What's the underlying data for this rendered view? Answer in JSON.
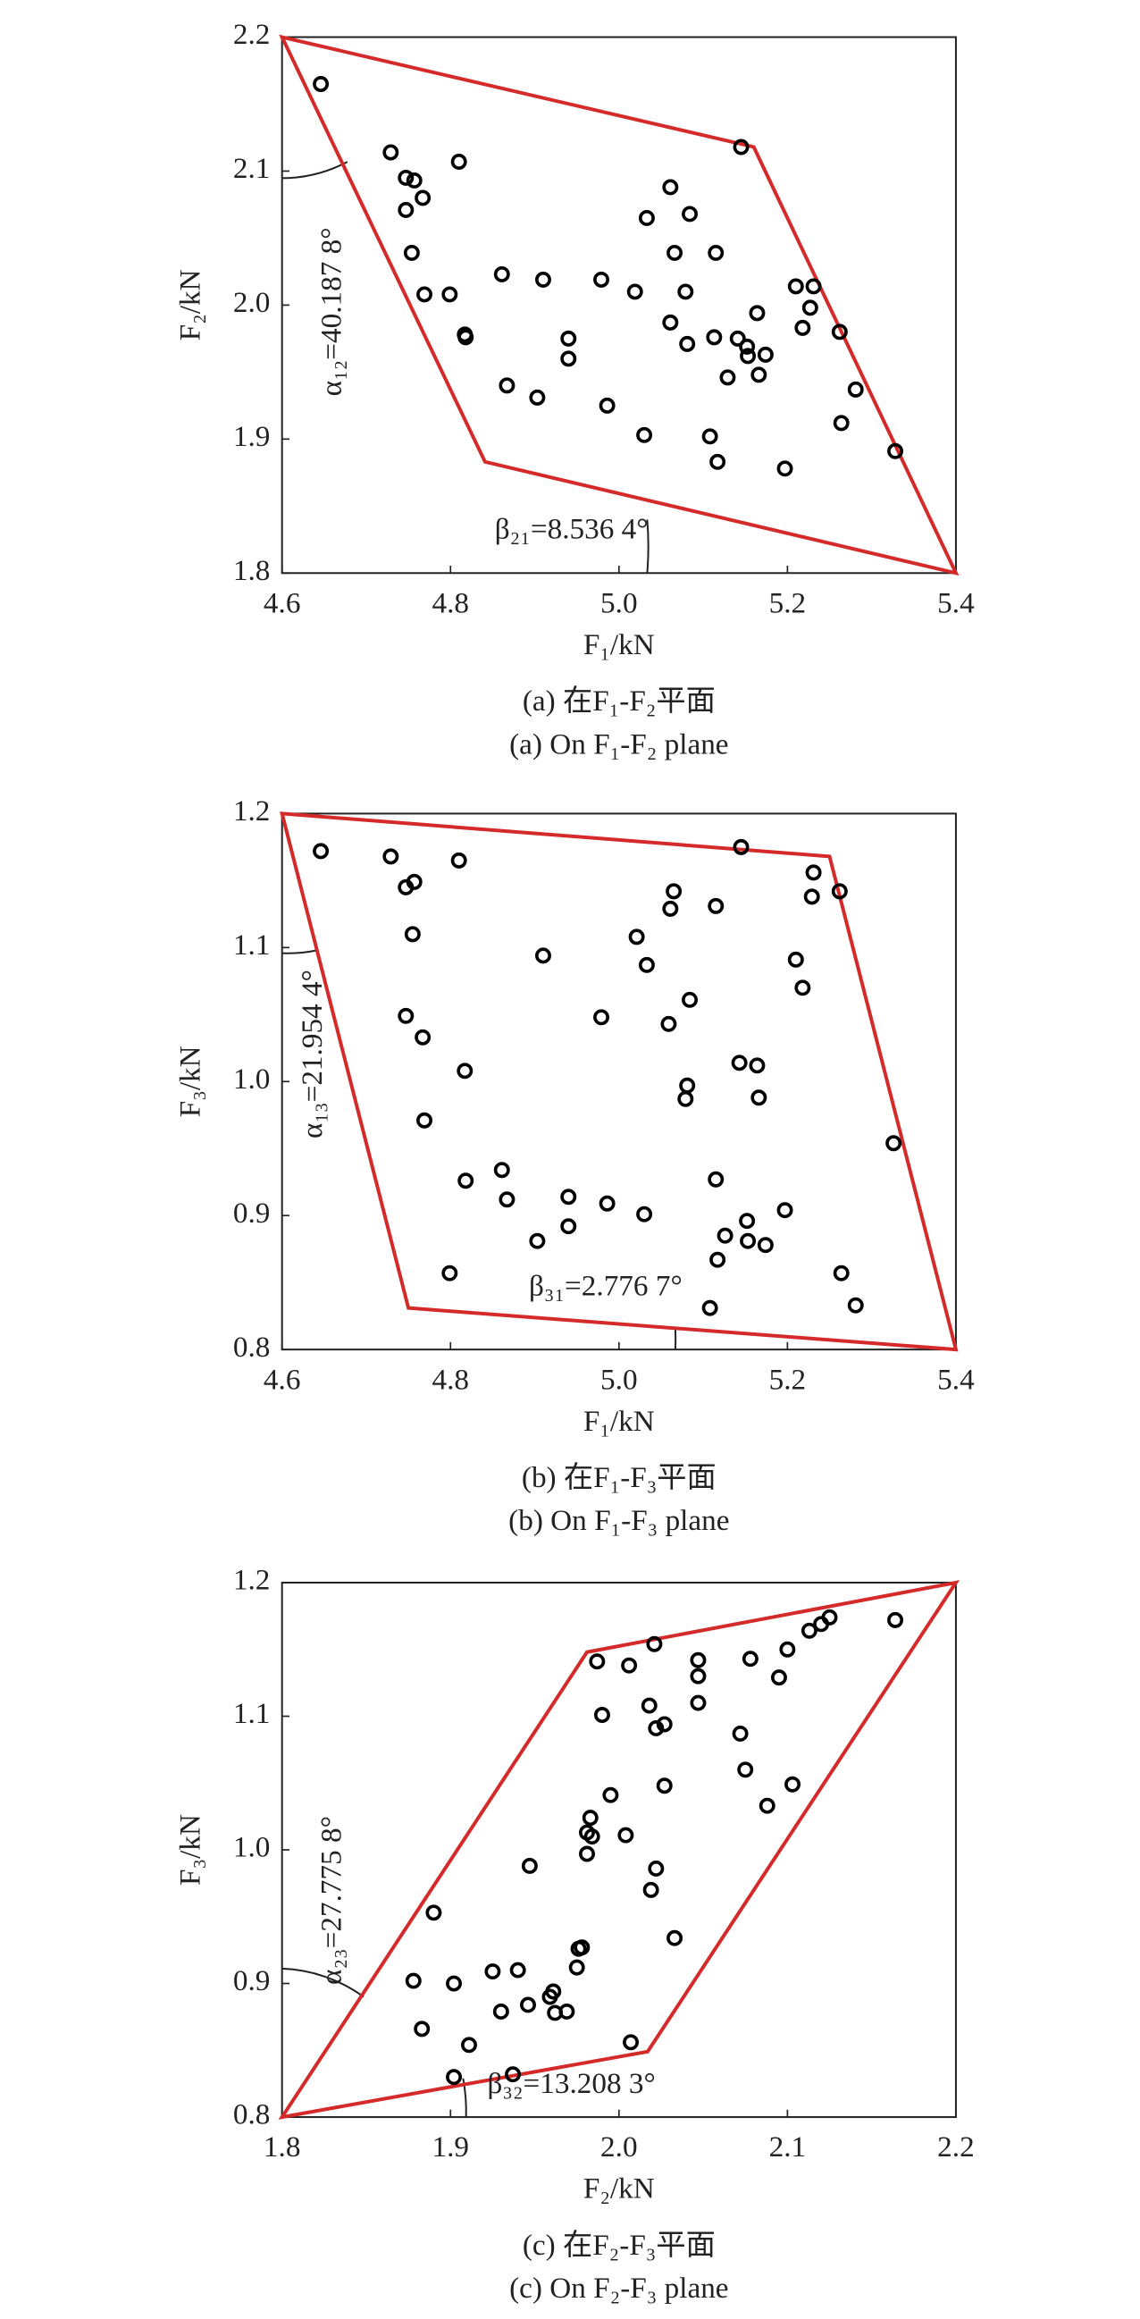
{
  "chart_data": [
    {
      "type": "scatter",
      "xlabel": "F₁/kN",
      "ylabel": "F₂/kN",
      "caption_zh": "(a) 在F₁-F₂平面",
      "caption_en": "(a) On F₁-F₂ plane",
      "annotations": [
        "α₁₂=40.187 8°",
        "β₂₁=8.536 4°"
      ],
      "xlim": [
        4.6,
        5.4
      ],
      "ylim": [
        1.8,
        2.2
      ],
      "xticks": [
        4.6,
        4.8,
        {
          "value": 5,
          "label": "5.0"
        },
        5.2,
        5.4
      ],
      "yticks": [
        1.8,
        1.9,
        {
          "value": 2,
          "label": "2.0"
        },
        2.1,
        2.2
      ],
      "color": "#000000",
      "x": [
        4.646,
        4.729,
        4.747,
        4.757,
        4.767,
        4.747,
        4.81,
        4.754,
        4.769,
        4.799,
        4.817,
        4.818,
        4.861,
        4.91,
        4.867,
        4.903,
        4.94,
        4.94,
        4.979,
        4.986,
        5.019,
        5.033,
        5.03,
        5.061,
        5.066,
        5.061,
        5.084,
        5.079,
        5.081,
        5.115,
        5.113,
        5.129,
        5.108,
        5.117,
        5.145,
        5.141,
        5.152,
        5.153,
        5.164,
        5.166,
        5.174,
        5.197,
        5.21,
        5.231,
        5.227,
        5.218,
        5.262,
        5.281,
        5.264,
        5.328
      ],
      "y": [
        2.165,
        2.114,
        2.095,
        2.093,
        2.08,
        2.071,
        2.107,
        2.039,
        2.008,
        2.008,
        1.978,
        1.976,
        2.023,
        2.019,
        1.94,
        1.931,
        1.975,
        1.96,
        2.019,
        1.925,
        2.01,
        2.065,
        1.903,
        2.088,
        2.039,
        1.987,
        2.068,
        2.01,
        1.971,
        2.039,
        1.976,
        1.946,
        1.902,
        1.883,
        2.118,
        1.975,
        1.969,
        1.962,
        1.994,
        1.948,
        1.963,
        1.878,
        2.014,
        2.014,
        1.998,
        1.983,
        1.98,
        1.937,
        1.912,
        1.891
      ],
      "polygon": {
        "color": "#d42a2a",
        "x": [
          4.6,
          5.16,
          5.4,
          4.841
        ],
        "y": [
          2.2,
          2.118,
          1.8,
          1.883
        ]
      }
    },
    {
      "type": "scatter",
      "xlabel": "F₁/kN",
      "ylabel": "F₃/kN",
      "caption_zh": "(b) 在F₁-F₃平面",
      "caption_en": "(b) On F₁-F₃ plane",
      "annotations": [
        "α₁₃=21.954 4°",
        "β₃₁=2.776 7°"
      ],
      "xlim": [
        4.6,
        5.4
      ],
      "ylim": [
        0.8,
        1.2
      ],
      "xticks": [
        4.6,
        4.8,
        {
          "value": 5,
          "label": "5.0"
        },
        5.2,
        5.4
      ],
      "yticks": [
        0.8,
        0.9,
        {
          "value": 1,
          "label": "1.0"
        },
        1.1,
        1.2
      ],
      "color": "#000000",
      "x": [
        4.646,
        4.729,
        4.747,
        4.757,
        4.81,
        4.755,
        4.747,
        4.767,
        4.817,
        4.769,
        4.91,
        4.979,
        5.021,
        5.033,
        5.065,
        5.061,
        5.115,
        5.145,
        5.059,
        5.084,
        5.081,
        5.079,
        5.143,
        5.164,
        5.166,
        5.21,
        5.218,
        5.231,
        5.229,
        5.262,
        5.326,
        4.861,
        4.867,
        4.818,
        4.94,
        4.94,
        4.903,
        4.986,
        5.03,
        5.115,
        5.126,
        5.117,
        5.152,
        5.153,
        5.174,
        5.197,
        4.799,
        5.108,
        5.264,
        5.281
      ],
      "y": [
        1.172,
        1.168,
        1.145,
        1.149,
        1.165,
        1.11,
        1.049,
        1.033,
        1.008,
        0.971,
        1.094,
        1.048,
        1.108,
        1.087,
        1.142,
        1.129,
        1.131,
        1.175,
        1.043,
        1.061,
        0.997,
        0.987,
        1.014,
        1.012,
        0.988,
        1.091,
        1.07,
        1.156,
        1.138,
        1.142,
        0.954,
        0.934,
        0.912,
        0.926,
        0.914,
        0.892,
        0.881,
        0.909,
        0.901,
        0.927,
        0.885,
        0.867,
        0.896,
        0.881,
        0.878,
        0.904,
        0.857,
        0.831,
        0.857,
        0.833
      ],
      "polygon": {
        "color": "#d42a2a",
        "x": [
          4.6,
          5.25,
          5.4,
          4.75
        ],
        "y": [
          1.2,
          1.168,
          0.8,
          0.831
        ]
      }
    },
    {
      "type": "scatter",
      "xlabel": "F₂/kN",
      "ylabel": "F₃/kN",
      "caption_zh": "(c) 在F₂-F₃平面",
      "caption_en": "(c) On F₂-F₃ plane",
      "annotations": [
        "α₂₃=27.775 8°",
        "β₃₂=13.208 3°"
      ],
      "xlim": [
        1.8,
        2.2
      ],
      "ylim": [
        0.8,
        1.2
      ],
      "xticks": [
        1.8,
        1.9,
        {
          "value": 2,
          "label": "2.0"
        },
        2.1,
        2.2
      ],
      "yticks": [
        0.8,
        0.9,
        {
          "value": 1,
          "label": "1.0"
        },
        1.1,
        1.2
      ],
      "color": "#000000",
      "x": [
        2.164,
        2.125,
        2.12,
        2.113,
        2.1,
        2.095,
        2.078,
        2.021,
        2.006,
        1.987,
        2.047,
        2.047,
        2.047,
        2.018,
        2.022,
        2.027,
        1.99,
        2.072,
        2.075,
        2.103,
        2.088,
        2.027,
        1.995,
        1.983,
        1.984,
        1.981,
        1.981,
        2.004,
        1.947,
        2.022,
        2.019,
        2.033,
        1.89,
        1.878,
        1.902,
        1.883,
        1.925,
        1.94,
        1.976,
        1.978,
        1.975,
        1.961,
        1.959,
        1.962,
        1.969,
        1.946,
        1.93,
        1.911,
        1.902,
        1.937,
        2.007
      ],
      "y": [
        1.172,
        1.174,
        1.169,
        1.164,
        1.15,
        1.129,
        1.143,
        1.154,
        1.138,
        1.141,
        1.142,
        1.13,
        1.11,
        1.108,
        1.091,
        1.094,
        1.101,
        1.087,
        1.06,
        1.049,
        1.033,
        1.048,
        1.041,
        1.024,
        1.01,
        1.013,
        0.997,
        1.011,
        0.988,
        0.986,
        0.97,
        0.934,
        0.953,
        0.902,
        0.9,
        0.866,
        0.909,
        0.91,
        0.926,
        0.927,
        0.912,
        0.894,
        0.89,
        0.878,
        0.879,
        0.884,
        0.879,
        0.854,
        0.83,
        0.832,
        0.856
      ],
      "polygon": {
        "color": "#d42a2a",
        "x": [
          1.8,
          1.981,
          2.2,
          2.017
        ],
        "y": [
          0.8,
          1.148,
          1.2,
          0.849
        ]
      }
    }
  ]
}
